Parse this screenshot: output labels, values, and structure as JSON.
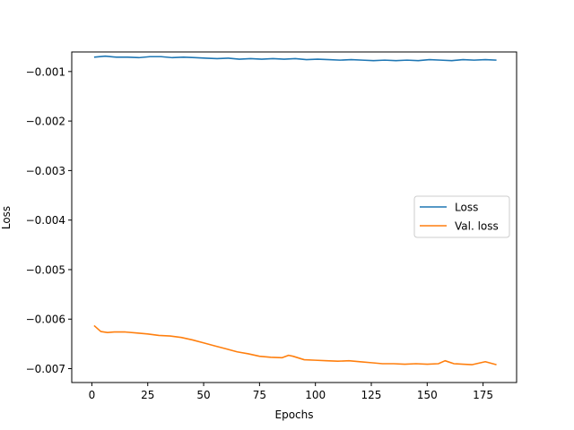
{
  "chart_data": {
    "type": "line",
    "xlabel": "Epochs",
    "ylabel": "Loss",
    "xlim": [
      -9,
      190
    ],
    "ylim": [
      -0.00728,
      -0.000605
    ],
    "xticks": [
      0,
      25,
      50,
      75,
      100,
      125,
      150,
      175
    ],
    "yticks": [
      -0.001,
      -0.002,
      -0.003,
      -0.004,
      -0.005,
      -0.006,
      -0.007
    ],
    "ytick_labels": [
      "−0.001",
      "−0.002",
      "−0.003",
      "−0.004",
      "−0.005",
      "−0.006",
      "−0.007"
    ],
    "grid": false,
    "legend_position": "center-right",
    "series": [
      {
        "name": "Loss",
        "color": "#1f77b4",
        "x": [
          1,
          6,
          11,
          16,
          21,
          26,
          31,
          36,
          41,
          46,
          51,
          56,
          61,
          66,
          71,
          76,
          81,
          86,
          91,
          96,
          101,
          106,
          111,
          116,
          121,
          126,
          131,
          136,
          141,
          146,
          151,
          156,
          161,
          166,
          171,
          176,
          181
        ],
        "y": [
          -0.00071,
          -0.00069,
          -0.00071,
          -0.00071,
          -0.00072,
          -0.0007,
          -0.0007,
          -0.00072,
          -0.00071,
          -0.00072,
          -0.00073,
          -0.00074,
          -0.00073,
          -0.00075,
          -0.00074,
          -0.00075,
          -0.00074,
          -0.00075,
          -0.00074,
          -0.00076,
          -0.00075,
          -0.00076,
          -0.00077,
          -0.00076,
          -0.00077,
          -0.00078,
          -0.00077,
          -0.00078,
          -0.00077,
          -0.00078,
          -0.00076,
          -0.00077,
          -0.00078,
          -0.00076,
          -0.00077,
          -0.00076,
          -0.00077
        ]
      },
      {
        "name": "Val. loss",
        "color": "#ff7f0e",
        "x": [
          1,
          4,
          7,
          10,
          15,
          20,
          25,
          30,
          35,
          40,
          45,
          50,
          55,
          60,
          65,
          70,
          75,
          80,
          85,
          88,
          90,
          95,
          100,
          105,
          110,
          115,
          120,
          125,
          130,
          135,
          140,
          145,
          150,
          155,
          158,
          162,
          166,
          170,
          176,
          181
        ],
        "y": [
          -0.00613,
          -0.00625,
          -0.00627,
          -0.00626,
          -0.00626,
          -0.00628,
          -0.0063,
          -0.00633,
          -0.00634,
          -0.00637,
          -0.00642,
          -0.00648,
          -0.00654,
          -0.0066,
          -0.00666,
          -0.0067,
          -0.00675,
          -0.00677,
          -0.00678,
          -0.00673,
          -0.00675,
          -0.00682,
          -0.00683,
          -0.00684,
          -0.00685,
          -0.00684,
          -0.00686,
          -0.00688,
          -0.0069,
          -0.0069,
          -0.00691,
          -0.0069,
          -0.00691,
          -0.0069,
          -0.00684,
          -0.0069,
          -0.00691,
          -0.00692,
          -0.00686,
          -0.00692
        ]
      }
    ]
  }
}
